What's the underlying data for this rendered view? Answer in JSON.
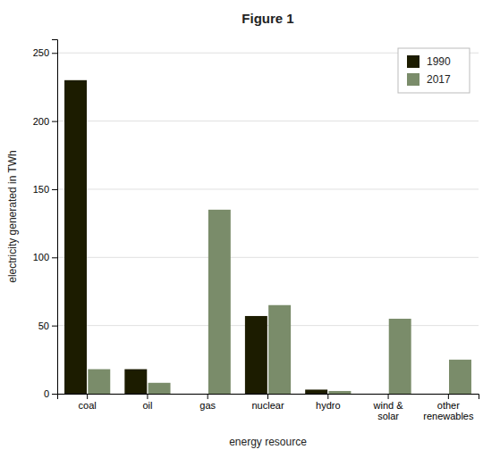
{
  "chart_data": {
    "type": "bar",
    "title": "Figure 1",
    "xlabel": "energy resource",
    "ylabel": "electricity generated in TWh",
    "categories": [
      "coal",
      "oil",
      "gas",
      "nuclear",
      "hydro",
      "wind &\nsolar",
      "other\nrenewables"
    ],
    "series": [
      {
        "name": "1990",
        "color": "#1c1c00",
        "values": [
          230,
          18,
          0,
          57,
          3,
          0,
          0
        ]
      },
      {
        "name": "2017",
        "color": "#7a8c6a",
        "values": [
          18,
          8,
          135,
          65,
          2,
          55,
          25
        ]
      }
    ],
    "ylim": [
      0,
      260
    ],
    "yticks": [
      0,
      50,
      100,
      150,
      200,
      250
    ],
    "grid": true,
    "legend": "upper right"
  }
}
